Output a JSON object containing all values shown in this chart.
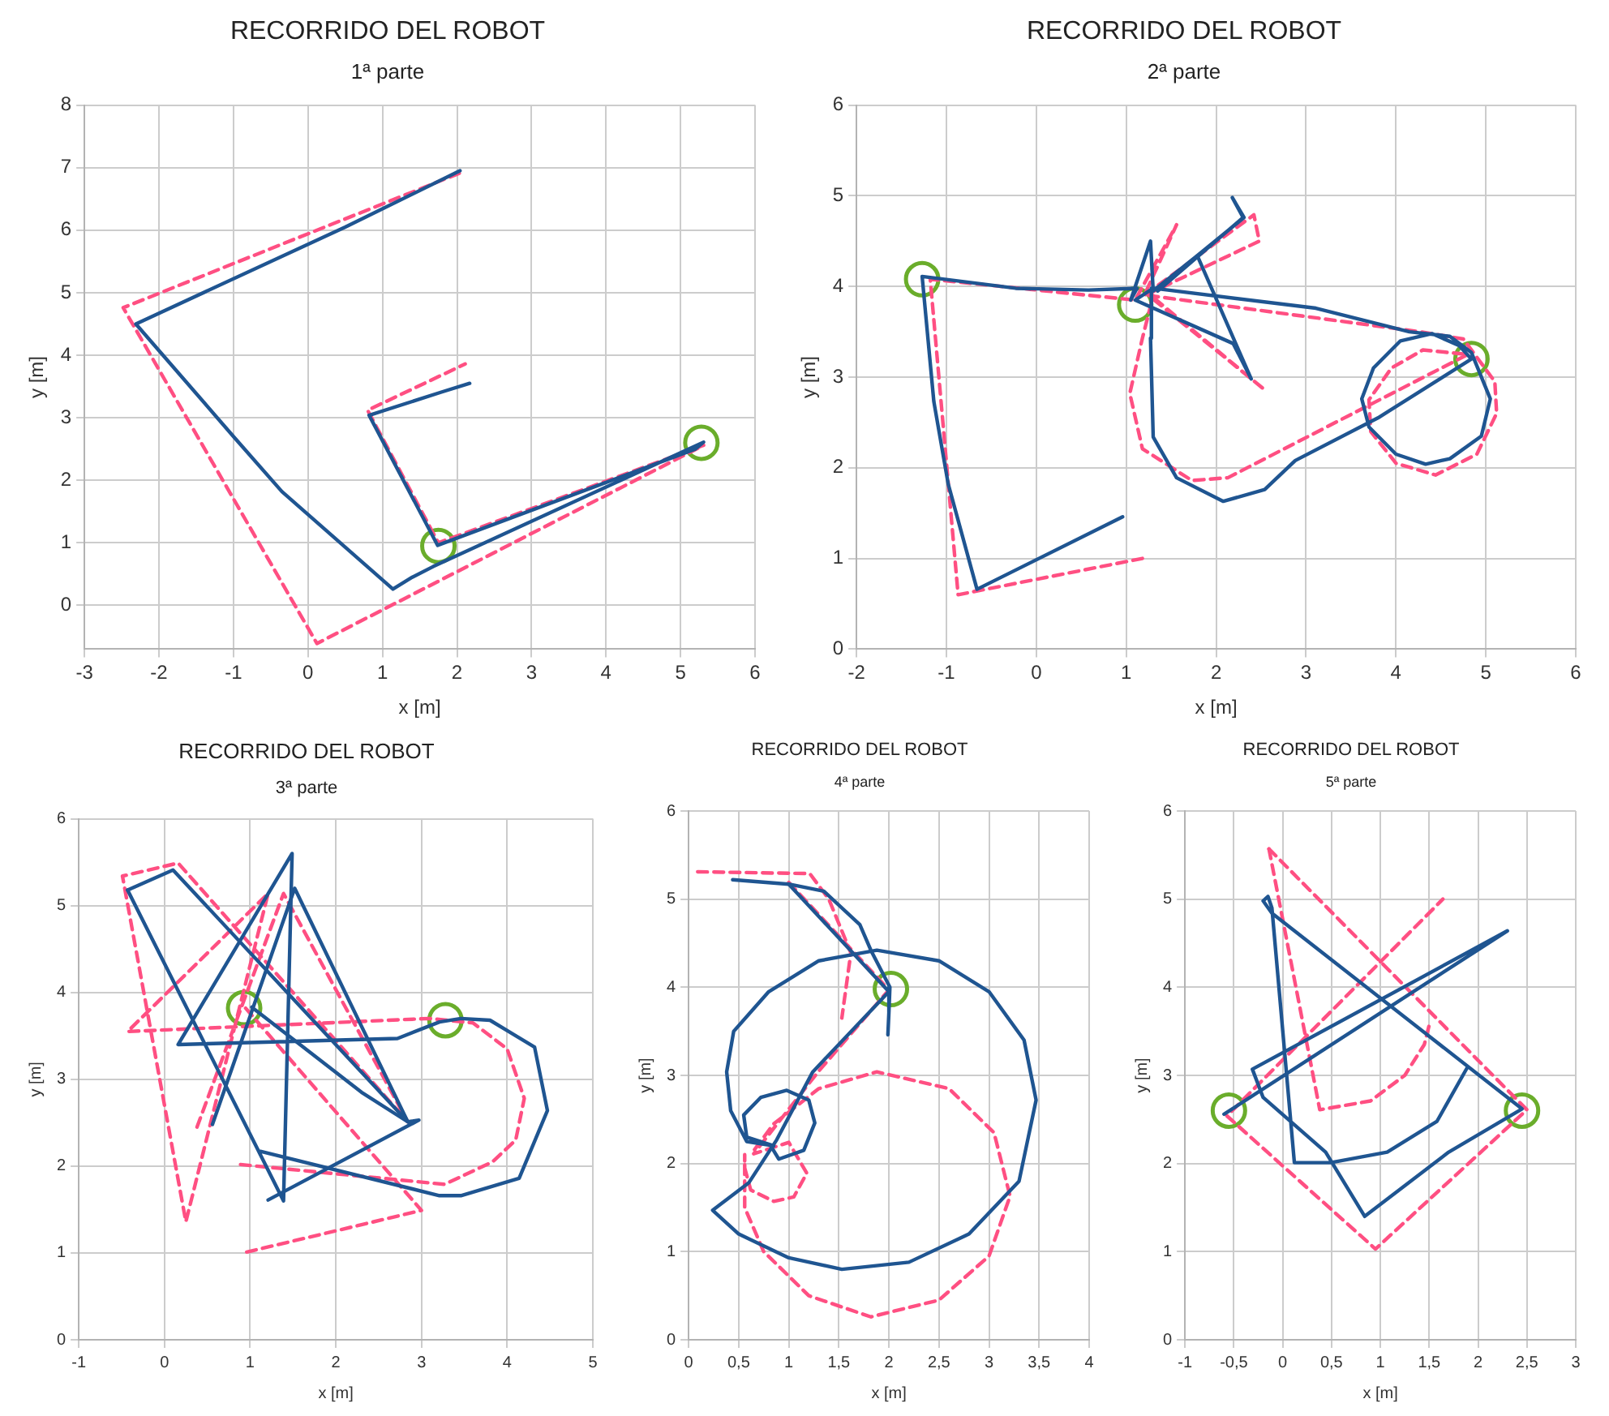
{
  "chart_data": [
    {
      "type": "line",
      "title": "RECORRIDO DEL ROBOT",
      "subtitle": "1ª parte",
      "xlabel": "x [m]",
      "ylabel": "y [m]",
      "xlim": [
        -3,
        6
      ],
      "xticks": [
        -3,
        -2,
        -1,
        0,
        1,
        2,
        3,
        4,
        5,
        6
      ],
      "ylim": [
        -0.7,
        8
      ],
      "yticks": [
        0,
        1,
        2,
        3,
        4,
        5,
        6,
        7,
        8
      ],
      "grid": true,
      "legend": false,
      "series": [
        {
          "color": "#1f5591",
          "line_style": "solid",
          "marker": "none",
          "x": [
            2.04,
            0.5,
            -2.31,
            -1.0,
            -0.35,
            1.14,
            1.4,
            1.68,
            5.31,
            5.2,
            1.74,
            0.82,
            1.79,
            2.17
          ],
          "values": [
            6.95,
            6.05,
            4.5,
            2.7,
            1.82,
            0.26,
            0.45,
            0.62,
            2.61,
            2.5,
            0.96,
            3.04,
            3.41,
            3.55
          ]
        },
        {
          "color": "#ff4f82",
          "line_style": "dashed",
          "marker": "none",
          "x": [
            2.03,
            -2.48,
            0.12,
            5.31,
            1.75,
            0.8,
            2.11
          ],
          "values": [
            6.91,
            4.76,
            -0.61,
            2.56,
            1.0,
            3.12,
            3.86
          ]
        },
        {
          "type": "scatter",
          "color": "#6aad2b",
          "marker": "circle",
          "x": [
            1.75,
            5.28
          ],
          "values": [
            0.95,
            2.6
          ]
        }
      ]
    },
    {
      "type": "line",
      "title": "RECORRIDO DEL ROBOT",
      "subtitle": "2ª parte",
      "xlabel": "x [m]",
      "ylabel": "y [m]",
      "xlim": [
        -2,
        6
      ],
      "xticks": [
        -2,
        -1,
        0,
        1,
        2,
        3,
        4,
        5,
        6
      ],
      "ylim": [
        0,
        6
      ],
      "yticks": [
        0,
        1,
        2,
        3,
        4,
        5,
        6
      ],
      "grid": true,
      "legend": false,
      "series": [
        {
          "color": "#1f5591",
          "line_style": "solid",
          "marker": "none",
          "x": [
            0.96,
            -0.66,
            -0.98,
            -1.14,
            -1.27,
            -0.23,
            0.58,
            1.12,
            1.05,
            1.27,
            1.3,
            1.79,
            2.31,
            2.18,
            2.3,
            1.35,
            1.79,
            2.39,
            2.19,
            1.1,
            1.3,
            3.11,
            4.15,
            4.6,
            4.84,
            5.05,
            4.95,
            4.6,
            4.33,
            4.0,
            3.7,
            3.62,
            3.75,
            4.05,
            4.4,
            4.7,
            4.84,
            3.8,
            2.88,
            2.54,
            2.08,
            1.56,
            1.3,
            1.27,
            1.28
          ],
          "values": [
            1.46,
            0.66,
            1.82,
            2.73,
            4.11,
            3.98,
            3.96,
            3.98,
            3.85,
            4.5,
            3.95,
            4.34,
            4.76,
            4.98,
            4.76,
            3.95,
            4.34,
            2.98,
            3.37,
            3.85,
            3.98,
            3.76,
            3.5,
            3.45,
            3.27,
            2.76,
            2.35,
            2.1,
            2.04,
            2.15,
            2.45,
            2.76,
            3.1,
            3.4,
            3.48,
            3.35,
            3.2,
            2.55,
            2.08,
            1.76,
            1.63,
            1.89,
            2.34,
            3.43,
            3.98
          ]
        },
        {
          "color": "#ff4f82",
          "line_style": "dashed",
          "marker": "none",
          "x": [
            1.18,
            -0.87,
            -1.18,
            1.1,
            1.56,
            1.2,
            2.42,
            2.48,
            1.25,
            2.54,
            1.25,
            4.27,
            4.75,
            5.1,
            5.12,
            4.9,
            4.44,
            4.0,
            3.72,
            3.7,
            3.95,
            4.3,
            4.8,
            2.13,
            1.73,
            1.18,
            1.04,
            1.18,
            1.3
          ],
          "values": [
            1.0,
            0.6,
            4.08,
            3.85,
            4.68,
            3.9,
            4.79,
            4.5,
            3.92,
            2.86,
            3.9,
            3.5,
            3.42,
            2.95,
            2.6,
            2.15,
            1.92,
            2.05,
            2.4,
            2.75,
            3.1,
            3.3,
            3.25,
            1.89,
            1.86,
            2.21,
            2.82,
            3.43,
            3.9
          ]
        },
        {
          "type": "scatter",
          "color": "#6aad2b",
          "marker": "circle",
          "x": [
            -1.27,
            1.1,
            4.84
          ],
          "values": [
            4.08,
            3.8,
            3.2
          ]
        }
      ]
    },
    {
      "type": "line",
      "title": "RECORRIDO DEL ROBOT",
      "subtitle": "3ª parte",
      "xlabel": "x [m]",
      "ylabel": "y [m]",
      "xlim": [
        -1,
        5
      ],
      "xticks": [
        -1,
        0,
        1,
        2,
        3,
        4,
        5
      ],
      "ylim": [
        0,
        6
      ],
      "yticks": [
        0,
        1,
        2,
        3,
        4,
        5,
        6
      ],
      "grid": true,
      "legend": false,
      "series": [
        {
          "color": "#1f5591",
          "line_style": "solid",
          "marker": "none",
          "x": [
            -0.43,
            0.1,
            2.84,
            2.97,
            1.21
          ],
          "values": [
            5.18,
            5.41,
            2.51,
            2.53,
            1.61
          ]
        },
        {
          "color": "#1f5591",
          "line_style": "solid",
          "marker": "none",
          "x": [
            -0.43,
            1.39,
            1.49,
            0.16,
            2.72,
            3.21,
            3.46,
            3.8,
            4.32,
            4.47,
            4.14,
            3.46,
            3.21,
            1.12
          ],
          "values": [
            5.18,
            1.6,
            5.6,
            3.4,
            3.47,
            3.66,
            3.7,
            3.68,
            3.37,
            2.64,
            1.86,
            1.66,
            1.66,
            2.17
          ]
        },
        {
          "color": "#1f5591",
          "line_style": "solid",
          "marker": "none",
          "x": [
            0.56,
            1.52,
            2.84,
            2.3,
            1.02
          ],
          "values": [
            2.48,
            5.2,
            2.51,
            2.85,
            3.83
          ]
        },
        {
          "color": "#ff4f82",
          "line_style": "dashed",
          "marker": "none",
          "x": [
            0.96,
            3.0,
            0.92
          ],
          "values": [
            1.01,
            1.49,
            3.85
          ]
        },
        {
          "color": "#ff4f82",
          "line_style": "dashed",
          "marker": "none",
          "x": [
            0.38,
            1.39,
            2.84,
            0.16,
            -0.49,
            0.25,
            1.21,
            -0.43,
            3.09,
            3.6,
            4.0,
            4.2,
            4.1,
            3.83,
            3.27,
            0.87
          ],
          "values": [
            2.45,
            5.14,
            2.51,
            5.49,
            5.34,
            1.36,
            5.14,
            3.55,
            3.7,
            3.65,
            3.35,
            2.78,
            2.3,
            2.05,
            1.79,
            2.02
          ]
        },
        {
          "type": "scatter",
          "color": "#6aad2b",
          "marker": "circle",
          "x": [
            0.93,
            3.28
          ],
          "values": [
            3.82,
            3.68
          ]
        }
      ]
    },
    {
      "type": "line",
      "title": "RECORRIDO DEL ROBOT",
      "subtitle": "4ª parte",
      "xlabel": "x [m]",
      "ylabel": "y [m]",
      "xlim": [
        0,
        4
      ],
      "xticks": [
        0,
        {
          "value": 0.5,
          "label": "0,5"
        },
        1,
        {
          "value": 1.5,
          "label": "1,5"
        },
        2,
        {
          "value": 2.5,
          "label": "2,5"
        },
        3,
        {
          "value": 3.5,
          "label": "3,5"
        },
        4
      ],
      "ylim": [
        0,
        6
      ],
      "yticks": [
        0,
        1,
        2,
        3,
        4,
        5,
        6
      ],
      "grid": true,
      "legend": false,
      "series": [
        {
          "color": "#1f5591",
          "line_style": "solid",
          "marker": "none",
          "x": [
            0.44,
            1.0,
            1.35,
            1.71,
            1.82,
            2.01,
            2.0,
            1.99
          ],
          "values": [
            5.22,
            5.17,
            5.09,
            4.71,
            4.42,
            4.0,
            3.71,
            3.46
          ]
        },
        {
          "color": "#1f5591",
          "line_style": "solid",
          "marker": "none",
          "x": [
            1.0,
            2.0,
            1.24,
            0.88,
            0.6,
            0.24,
            0.5,
            1.0,
            1.53,
            2.2,
            2.8,
            3.3,
            3.47,
            3.35,
            3.0,
            2.5,
            1.88,
            1.3,
            0.8,
            0.45,
            0.38,
            0.42,
            0.58,
            0.85,
            0.58,
            0.55,
            0.72,
            0.98,
            1.2,
            1.26,
            1.15,
            0.9,
            0.82
          ],
          "values": [
            5.17,
            3.95,
            3.04,
            2.27,
            1.78,
            1.47,
            1.2,
            0.93,
            0.8,
            0.88,
            1.2,
            1.8,
            2.72,
            3.4,
            3.95,
            4.3,
            4.42,
            4.3,
            3.95,
            3.5,
            3.04,
            2.6,
            2.25,
            2.2,
            2.3,
            2.55,
            2.75,
            2.83,
            2.72,
            2.46,
            2.15,
            2.05,
            2.2
          ]
        },
        {
          "color": "#ff4f82",
          "line_style": "dashed",
          "marker": "none",
          "x": [
            0.09,
            1.21,
            1.4,
            1.62,
            1.53
          ],
          "values": [
            5.31,
            5.29,
            5.0,
            4.39,
            3.65
          ]
        },
        {
          "color": "#ff4f82",
          "line_style": "dashed",
          "marker": "none",
          "x": [
            1.0,
            2.0,
            1.3,
            0.65,
            1.0,
            1.18,
            1.05,
            0.85,
            0.62,
            0.56,
            0.56,
            0.56,
            0.75,
            1.2,
            1.82,
            2.5,
            3.0,
            3.21,
            3.05,
            2.6,
            1.88,
            1.3,
            0.85,
            0.62
          ],
          "values": [
            5.19,
            3.97,
            3.05,
            2.11,
            2.24,
            1.89,
            1.62,
            1.57,
            1.7,
            1.95,
            2.1,
            1.5,
            1.0,
            0.5,
            0.26,
            0.45,
            0.95,
            1.63,
            2.35,
            2.85,
            3.04,
            2.85,
            2.45,
            2.1
          ]
        },
        {
          "type": "scatter",
          "color": "#6aad2b",
          "marker": "circle",
          "x": [
            2.02
          ],
          "values": [
            3.98
          ]
        }
      ]
    },
    {
      "type": "line",
      "title": "RECORRIDO DEL ROBOT",
      "subtitle": "5ª parte",
      "xlabel": "x [m]",
      "ylabel": "y [m]",
      "xlim": [
        -1,
        3
      ],
      "xticks": [
        -1,
        {
          "value": -0.5,
          "label": "-0,5"
        },
        0,
        {
          "value": 0.5,
          "label": "0,5"
        },
        1,
        {
          "value": 1.5,
          "label": "1,5"
        },
        2,
        {
          "value": 2.5,
          "label": "2,5"
        },
        3
      ],
      "ylim": [
        0,
        6
      ],
      "yticks": [
        0,
        1,
        2,
        3,
        4,
        5,
        6
      ],
      "grid": true,
      "legend": false,
      "series": [
        {
          "color": "#1f5591",
          "line_style": "solid",
          "marker": "none",
          "x": [
            -0.6,
            2.3,
            -0.31,
            -0.2,
            0.44,
            0.84,
            1.7,
            2.45,
            -0.11,
            -0.2,
            -0.15,
            -0.11,
            0.12,
            0.49,
            1.07,
            1.58,
            1.89
          ],
          "values": [
            2.56,
            4.64,
            3.07,
            2.75,
            2.13,
            1.4,
            2.13,
            2.62,
            4.84,
            4.98,
            5.03,
            4.9,
            2.01,
            2.01,
            2.13,
            2.48,
            3.09
          ]
        },
        {
          "color": "#ff4f82",
          "line_style": "dashed",
          "marker": "none",
          "x": [
            -0.14,
            2.5,
            0.95,
            -0.57,
            1.64
          ],
          "values": [
            5.57,
            2.61,
            1.03,
            2.54,
            5.0
          ]
        },
        {
          "color": "#ff4f82",
          "line_style": "dashed",
          "marker": "none",
          "x": [
            -0.14,
            0.38,
            0.9,
            1.25,
            1.45,
            1.5
          ],
          "values": [
            5.57,
            2.61,
            2.71,
            3.0,
            3.35,
            3.57
          ]
        },
        {
          "type": "scatter",
          "color": "#6aad2b",
          "marker": "circle",
          "x": [
            -0.55,
            2.45
          ],
          "values": [
            2.6,
            2.6
          ]
        }
      ]
    }
  ]
}
